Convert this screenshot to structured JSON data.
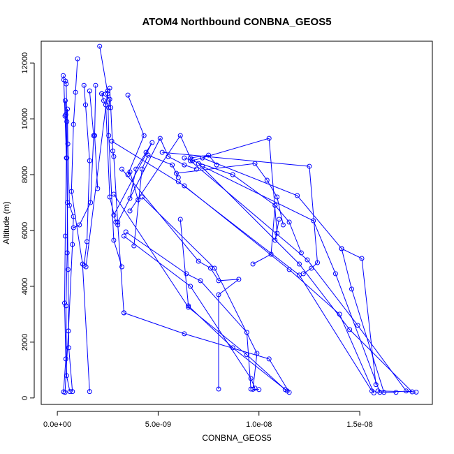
{
  "chart_data": {
    "type": "line",
    "title": "ATOM4 Northbound CONBNA_GEOS5",
    "xlabel": "CONBNA_GEOS5",
    "ylabel": "Altitude (m)",
    "xlim": [
      -8e-10,
      1.86e-08
    ],
    "ylim": [
      -230,
      12780
    ],
    "x_ticks": [
      0,
      5e-09,
      1e-08,
      1.5e-08
    ],
    "x_tick_labels": [
      "0.0e+00",
      "5.0e-09",
      "1.0e-08",
      "1.5e-08"
    ],
    "y_ticks": [
      0,
      2000,
      4000,
      6000,
      8000,
      10000,
      12000
    ],
    "y_tick_labels": [
      "0",
      "2000",
      "4000",
      "6000",
      "8000",
      "10000",
      "12000"
    ],
    "grid": false,
    "legend": "none",
    "marker": "open-circle",
    "color": "#0000ff",
    "series": [
      {
        "points": [
          [
            3.1e-10,
            220
          ],
          [
            4.2e-10,
            1400
          ],
          [
            3.6e-10,
            3400
          ],
          [
            3.9e-10,
            5800
          ],
          [
            4.5e-10,
            8600
          ],
          [
            3.8e-10,
            10100
          ],
          [
            3.2e-10,
            11400
          ],
          [
            2.9e-10,
            11550
          ]
        ]
      },
      {
        "points": [
          [
            6.2e-10,
            230
          ],
          [
            4.6e-10,
            800
          ],
          [
            4.3e-10,
            3300
          ],
          [
            4.9e-10,
            5200
          ],
          [
            5e-10,
            7000
          ],
          [
            4.7e-10,
            9900
          ],
          [
            4.4e-10,
            11250
          ],
          [
            4.1e-10,
            11350
          ]
        ]
      },
      {
        "points": [
          [
            7.5e-10,
            230
          ],
          [
            5.7e-10,
            1800
          ],
          [
            5.3e-10,
            4600
          ],
          [
            4.7e-10,
            8600
          ],
          [
            4.2e-10,
            10150
          ],
          [
            3.9e-10,
            10650
          ]
        ]
      },
      {
        "points": [
          [
            1.6e-09,
            230
          ],
          [
            1.25e-09,
            4800
          ],
          [
            7e-10,
            7400
          ],
          [
            8e-10,
            9800
          ],
          [
            9e-10,
            10950
          ],
          [
            1e-09,
            12150
          ]
        ]
      },
      {
        "points": [
          [
            3.8e-10,
            200
          ],
          [
            5.5e-10,
            2400
          ],
          [
            7.5e-10,
            5500
          ],
          [
            8e-10,
            6500
          ],
          [
            6e-10,
            6900
          ],
          [
            5.2e-10,
            9100
          ],
          [
            5e-10,
            10350
          ]
        ]
      },
      {
        "points": [
          [
            1.32e-09,
            4750
          ],
          [
            1.47e-09,
            5600
          ],
          [
            1.6e-09,
            8500
          ],
          [
            1.4e-09,
            10500
          ],
          [
            1.32e-09,
            11200
          ]
        ]
      },
      {
        "points": [
          [
            1.6e-09,
            11000
          ],
          [
            1.8e-09,
            9400
          ],
          [
            1.65e-09,
            7000
          ],
          [
            1.1e-09,
            6200
          ],
          [
            8e-10,
            6100
          ]
        ]
      },
      {
        "points": [
          [
            2.1e-09,
            12600
          ],
          [
            2.5e-09,
            10900
          ],
          [
            2.55e-09,
            9400
          ],
          [
            2.8e-09,
            5650
          ],
          [
            3.2e-09,
            4700
          ]
        ]
      },
      {
        "points": [
          [
            2e-09,
            7500
          ],
          [
            1.85e-09,
            9400
          ],
          [
            1.9e-09,
            11200
          ]
        ]
      },
      {
        "points": [
          [
            2.6e-09,
            11100
          ],
          [
            2.65e-09,
            10400
          ],
          [
            2.75e-09,
            8850
          ],
          [
            2.8e-09,
            8650
          ],
          [
            3e-09,
            6200
          ],
          [
            3.3e-09,
            3050
          ]
        ]
      },
      {
        "points": [
          [
            1.42e-09,
            4700
          ],
          [
            2.5e-09,
            11000
          ],
          [
            2.2e-09,
            10900
          ],
          [
            2.6e-09,
            10700
          ],
          [
            2.55e-09,
            10400
          ]
        ]
      },
      {
        "points": [
          [
            2.2e-09,
            10900
          ],
          [
            2.3e-09,
            10650
          ],
          [
            2.4e-09,
            10500
          ],
          [
            2.6e-09,
            7200
          ],
          [
            2.9e-09,
            6300
          ]
        ]
      },
      {
        "points": [
          [
            3.5e-09,
            10850
          ],
          [
            4.3e-09,
            9400
          ],
          [
            3.5e-09,
            8000
          ],
          [
            3.6e-09,
            8100
          ],
          [
            4e-09,
            7100
          ]
        ]
      },
      {
        "points": [
          [
            2.8e-09,
            6550
          ],
          [
            4.7e-09,
            9150
          ],
          [
            4.4e-09,
            8800
          ],
          [
            3.9e-09,
            8200
          ],
          [
            3.6e-09,
            7150
          ]
        ]
      },
      {
        "points": [
          [
            3e-09,
            6300
          ],
          [
            5.1e-09,
            9300
          ],
          [
            5.5e-09,
            8650
          ],
          [
            6.3e-09,
            8350
          ],
          [
            6.9e-09,
            8200
          ]
        ]
      },
      {
        "points": [
          [
            3.6e-09,
            6700
          ],
          [
            6.1e-09,
            9400
          ],
          [
            6.6e-09,
            8600
          ],
          [
            7.5e-09,
            8700
          ],
          [
            7.9e-09,
            8350
          ]
        ]
      },
      {
        "points": [
          [
            3.8e-09,
            5450
          ],
          [
            4.2e-09,
            8200
          ],
          [
            4.5e-09,
            8700
          ],
          [
            5.7e-09,
            8350
          ],
          [
            6e-09,
            7900
          ]
        ]
      },
      {
        "points": [
          [
            5.9e-09,
            8050
          ],
          [
            9.8e-09,
            8400
          ],
          [
            1.04e-08,
            7800
          ],
          [
            1.09e-08,
            7200
          ],
          [
            1.12e-08,
            6200
          ]
        ]
      },
      {
        "points": [
          [
            6.3e-09,
            8600
          ],
          [
            8.7e-09,
            8000
          ],
          [
            1.08e-08,
            6900
          ],
          [
            1.15e-08,
            6300
          ],
          [
            1.21e-08,
            5200
          ]
        ]
      },
      {
        "points": [
          [
            5.2e-09,
            8800
          ],
          [
            1.25e-08,
            8300
          ],
          [
            1.29e-08,
            4850
          ],
          [
            1.26e-08,
            4650
          ],
          [
            1.22e-08,
            4450
          ]
        ]
      },
      {
        "points": [
          [
            6.7e-09,
            8500
          ],
          [
            1.05e-08,
            9300
          ],
          [
            1.09e-08,
            5900
          ],
          [
            1.08e-08,
            5650
          ],
          [
            1.1e-08,
            6400
          ]
        ]
      },
      {
        "points": [
          [
            7.2e-09,
            8600
          ],
          [
            1.19e-08,
            7250
          ],
          [
            1.41e-08,
            5350
          ],
          [
            1.51e-08,
            5000
          ],
          [
            1.58e-08,
            480
          ]
        ]
      },
      {
        "points": [
          [
            7.2e-09,
            8300
          ],
          [
            1.27e-08,
            6350
          ],
          [
            1.38e-08,
            4450
          ],
          [
            1.6e-08,
            200
          ],
          [
            1.68e-08,
            200
          ]
        ]
      },
      {
        "points": [
          [
            6.6e-09,
            8500
          ],
          [
            1.24e-08,
            4950
          ],
          [
            1.49e-08,
            2600
          ],
          [
            1.73e-08,
            250
          ],
          [
            1.78e-08,
            210
          ]
        ]
      },
      {
        "points": [
          [
            7e-09,
            8400
          ],
          [
            1.2e-08,
            4800
          ],
          [
            1.45e-08,
            2450
          ],
          [
            1.76e-08,
            220
          ],
          [
            1.59e-08,
            250
          ]
        ]
      },
      {
        "points": [
          [
            2.7e-09,
            9200
          ],
          [
            6.3e-09,
            7600
          ],
          [
            1.15e-08,
            4600
          ],
          [
            1.4e-08,
            3000
          ],
          [
            1.57e-08,
            180
          ]
        ]
      },
      {
        "points": [
          [
            6e-09,
            7750
          ],
          [
            1.2e-08,
            4400
          ],
          [
            1.56e-08,
            250
          ]
        ]
      },
      {
        "points": [
          [
            3.2e-09,
            8200
          ],
          [
            7e-09,
            4900
          ],
          [
            7.6e-09,
            4650
          ],
          [
            8e-09,
            4200
          ],
          [
            9e-09,
            4250
          ],
          [
            8e-09,
            3700
          ],
          [
            8e-09,
            320
          ]
        ]
      },
      {
        "points": [
          [
            3.4e-09,
            5950
          ],
          [
            6.4e-09,
            4450
          ],
          [
            7.1e-09,
            4200
          ],
          [
            9.4e-09,
            2350
          ],
          [
            9.6e-09,
            320
          ]
        ]
      },
      {
        "points": [
          [
            4.2e-09,
            7200
          ],
          [
            7.8e-09,
            4650
          ],
          [
            9.9e-09,
            1600
          ],
          [
            9.7e-09,
            310
          ],
          [
            1e-08,
            300
          ]
        ]
      },
      {
        "points": [
          [
            2.8e-09,
            7300
          ],
          [
            6.5e-09,
            3250
          ],
          [
            9.4e-09,
            1550
          ],
          [
            1.13e-08,
            300
          ]
        ]
      },
      {
        "points": [
          [
            3.3e-09,
            5800
          ],
          [
            6.6e-09,
            4000
          ],
          [
            9.6e-09,
            700
          ],
          [
            9.8e-09,
            350
          ]
        ]
      },
      {
        "points": [
          [
            3.3e-09,
            3050
          ],
          [
            6.3e-09,
            2300
          ],
          [
            1.05e-08,
            1400
          ],
          [
            1.15e-08,
            200
          ]
        ]
      },
      {
        "points": [
          [
            6.1e-09,
            6400
          ],
          [
            6.5e-09,
            3300
          ],
          [
            8.7e-09,
            1800
          ],
          [
            1.14e-08,
            250
          ]
        ]
      },
      {
        "points": [
          [
            9.7e-09,
            4800
          ],
          [
            1.06e-08,
            5150
          ],
          [
            1.08e-08,
            6900
          ]
        ]
      },
      {
        "points": [
          [
            1.41e-08,
            5350
          ],
          [
            1.46e-08,
            3900
          ],
          [
            1.62e-08,
            200
          ]
        ]
      }
    ]
  }
}
